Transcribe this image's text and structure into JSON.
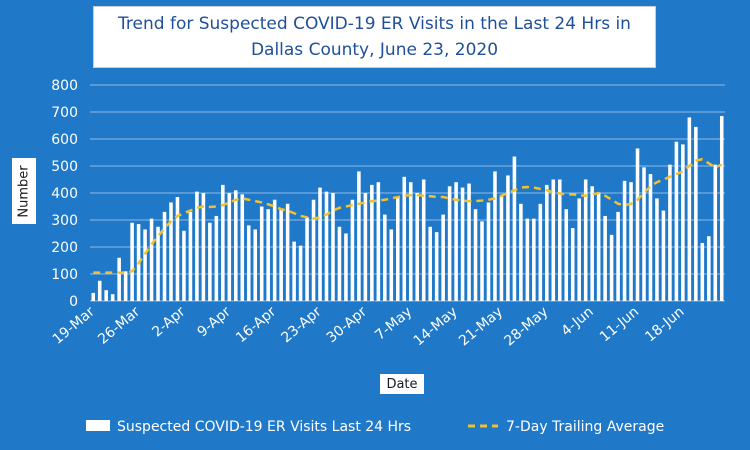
{
  "chart_data": {
    "type": "bar",
    "title_line1": "Trend for Suspected COVID-19 ER Visits in the Last 24 Hrs in",
    "title_line2": "Dallas County, June 23, 2020",
    "xlabel": "Date",
    "ylabel": "Number",
    "ylim": [
      0,
      800
    ],
    "yticks": [
      "0",
      "100",
      "200",
      "300",
      "400",
      "500",
      "600",
      "700",
      "800"
    ],
    "xtick_labels": [
      "19-Mar",
      "26-Mar",
      "2-Apr",
      "9-Apr",
      "16-Apr",
      "23-Apr",
      "30-Apr",
      "7-May",
      "14-May",
      "21-May",
      "28-May",
      "4-Jun",
      "11-Jun",
      "18-Jun"
    ],
    "grid": true,
    "legend_position": "bottom",
    "colors": {
      "background": "#1f78c8",
      "bars": "#ffffff",
      "average": "#f2c12e"
    },
    "series": [
      {
        "name": "Suspected COVID-19 ER Visits Last 24 Hrs",
        "type": "bar",
        "values": [
          30,
          75,
          40,
          25,
          160,
          110,
          290,
          285,
          265,
          305,
          275,
          330,
          365,
          385,
          260,
          330,
          405,
          400,
          290,
          315,
          430,
          400,
          410,
          395,
          280,
          265,
          350,
          340,
          375,
          340,
          360,
          220,
          205,
          310,
          375,
          420,
          405,
          400,
          275,
          250,
          375,
          480,
          400,
          430,
          440,
          320,
          265,
          385,
          460,
          440,
          400,
          450,
          275,
          255,
          320,
          425,
          440,
          420,
          435,
          340,
          295,
          365,
          480,
          390,
          465,
          535,
          360,
          305,
          305,
          360,
          430,
          450,
          450,
          340,
          270,
          380,
          450,
          425,
          400,
          315,
          245,
          330,
          445,
          440,
          565,
          495,
          470,
          380,
          335,
          505,
          590,
          580,
          680,
          645,
          215,
          240,
          505,
          685
        ]
      },
      {
        "name": "7-Day Trailing Average",
        "type": "line",
        "values": [
          105,
          105,
          105,
          105,
          105,
          105,
          110,
          140,
          175,
          210,
          240,
          270,
          295,
          315,
          325,
          335,
          345,
          350,
          348,
          350,
          355,
          365,
          375,
          380,
          375,
          370,
          365,
          358,
          350,
          340,
          335,
          325,
          315,
          310,
          305,
          310,
          320,
          335,
          345,
          350,
          355,
          360,
          365,
          370,
          372,
          375,
          380,
          385,
          390,
          392,
          392,
          390,
          388,
          386,
          385,
          380,
          375,
          372,
          370,
          370,
          372,
          375,
          380,
          390,
          400,
          410,
          420,
          422,
          420,
          415,
          410,
          402,
          398,
          395,
          395,
          392,
          390,
          395,
          400,
          390,
          375,
          360,
          355,
          360,
          375,
          400,
          425,
          440,
          450,
          460,
          470,
          480,
          500,
          520,
          525,
          510,
          495,
          505
        ]
      }
    ]
  }
}
